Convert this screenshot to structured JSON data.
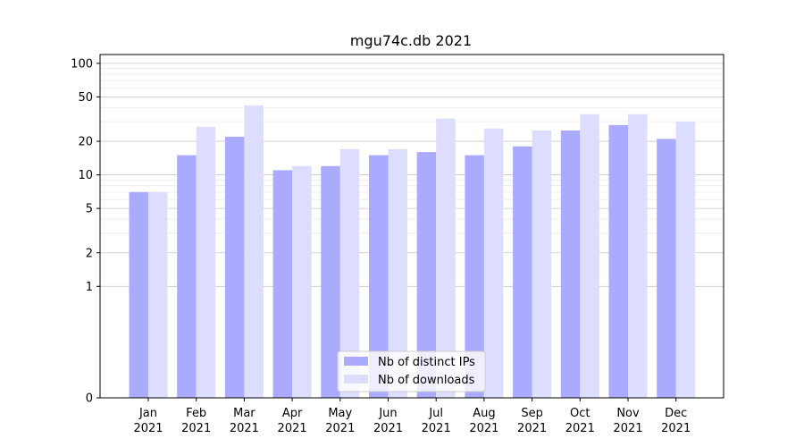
{
  "chart_data": {
    "type": "bar",
    "title": "mgu74c.db 2021",
    "xlabel": "",
    "ylabel": "",
    "y_scale": "symlog",
    "ylim": [
      0,
      120
    ],
    "y_ticks": [
      0,
      1,
      2,
      5,
      10,
      20,
      50,
      100
    ],
    "grid": true,
    "legend_position": "bottom-center",
    "categories": [
      [
        "Jan",
        "2021"
      ],
      [
        "Feb",
        "2021"
      ],
      [
        "Mar",
        "2021"
      ],
      [
        "Apr",
        "2021"
      ],
      [
        "May",
        "2021"
      ],
      [
        "Jun",
        "2021"
      ],
      [
        "Jul",
        "2021"
      ],
      [
        "Aug",
        "2021"
      ],
      [
        "Sep",
        "2021"
      ],
      [
        "Oct",
        "2021"
      ],
      [
        "Nov",
        "2021"
      ],
      [
        "Dec",
        "2021"
      ]
    ],
    "series": [
      {
        "name": "Nb of distinct IPs",
        "color": "#aaaaff",
        "values": [
          7,
          15,
          22,
          11,
          12,
          15,
          16,
          15,
          18,
          25,
          28,
          21
        ]
      },
      {
        "name": "Nb of downloads",
        "color": "#ddddff",
        "values": [
          7,
          27,
          42,
          12,
          17,
          17,
          32,
          26,
          25,
          35,
          35,
          30
        ]
      }
    ]
  }
}
